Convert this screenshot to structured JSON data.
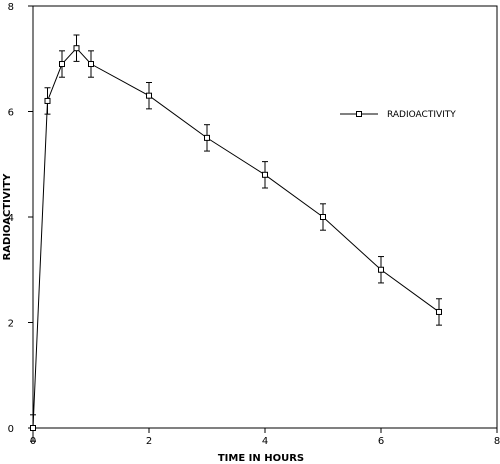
{
  "chart_data": {
    "type": "line",
    "title": "",
    "xlabel": "TIME IN HOURS",
    "ylabel": "RADIOACTIVITY",
    "xlim": [
      0,
      8
    ],
    "ylim": [
      0,
      8
    ],
    "xticks": [
      0,
      2,
      4,
      6,
      8
    ],
    "yticks": [
      0,
      2,
      4,
      6,
      8
    ],
    "grid": false,
    "legend_position": "upper-right",
    "series": [
      {
        "name": "RADIOACTIVITY",
        "marker": "open-square",
        "color": "#000000",
        "x": [
          0,
          0.25,
          0.5,
          0.75,
          1,
          2,
          3,
          4,
          5,
          6,
          7
        ],
        "y": [
          0,
          6.2,
          6.9,
          7.2,
          6.9,
          6.3,
          5.5,
          4.8,
          4.0,
          3.0,
          2.2
        ],
        "error": [
          0.25,
          0.25,
          0.25,
          0.25,
          0.25,
          0.25,
          0.25,
          0.25,
          0.25,
          0.25,
          0.25
        ]
      }
    ]
  }
}
